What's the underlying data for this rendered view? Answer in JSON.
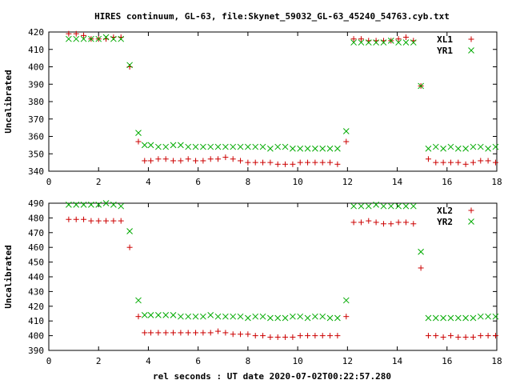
{
  "chart_data": [
    {
      "type": "scatter",
      "title": "HIRES continuum, GL-63, file:Skynet_59032_GL-63_45240_54763.cyb.txt",
      "xlabel": "",
      "ylabel": "Uncalibrated",
      "xlim": [
        0,
        18
      ],
      "ylim": [
        340,
        420
      ],
      "xticks": [
        0,
        2,
        4,
        6,
        8,
        10,
        12,
        14,
        16,
        18
      ],
      "yticks": [
        340,
        350,
        360,
        370,
        380,
        390,
        400,
        410,
        420
      ],
      "grid": false,
      "legend": "top-right",
      "series": [
        {
          "name": "XL1",
          "color": "#cc0000",
          "marker": "plus",
          "x": [
            0.8,
            1.1,
            1.4,
            1.7,
            2.0,
            2.3,
            2.6,
            2.9,
            3.25,
            3.6,
            3.85,
            4.1,
            4.4,
            4.7,
            5.0,
            5.3,
            5.6,
            5.9,
            6.2,
            6.5,
            6.8,
            7.1,
            7.4,
            7.7,
            8.0,
            8.3,
            8.6,
            8.9,
            9.2,
            9.5,
            9.8,
            10.1,
            10.4,
            10.7,
            11.0,
            11.3,
            11.6,
            11.95,
            12.25,
            12.55,
            12.85,
            13.15,
            13.45,
            13.75,
            14.05,
            14.35,
            14.65,
            14.95,
            15.25,
            15.55,
            15.85,
            16.15,
            16.45,
            16.75,
            17.05,
            17.35,
            17.65,
            17.95
          ],
          "y": [
            419,
            419,
            418,
            416,
            416,
            416,
            417,
            417,
            400,
            357,
            346,
            346,
            347,
            347,
            346,
            346,
            347,
            346,
            346,
            347,
            347,
            348,
            347,
            346,
            345,
            345,
            345,
            345,
            344,
            344,
            344,
            345,
            345,
            345,
            345,
            345,
            344,
            357,
            416,
            416,
            415,
            415,
            415,
            415,
            416,
            417,
            415,
            389,
            347,
            345,
            345,
            345,
            345,
            344,
            345,
            346,
            346,
            345
          ]
        },
        {
          "name": "YR1",
          "color": "#00aa00",
          "marker": "cross",
          "x": [
            0.8,
            1.1,
            1.4,
            1.7,
            2.0,
            2.3,
            2.6,
            2.9,
            3.25,
            3.6,
            3.85,
            4.1,
            4.4,
            4.7,
            5.0,
            5.3,
            5.6,
            5.9,
            6.2,
            6.5,
            6.8,
            7.1,
            7.4,
            7.7,
            8.0,
            8.3,
            8.6,
            8.9,
            9.2,
            9.5,
            9.8,
            10.1,
            10.4,
            10.7,
            11.0,
            11.3,
            11.6,
            11.95,
            12.25,
            12.55,
            12.85,
            13.15,
            13.45,
            13.75,
            14.05,
            14.35,
            14.65,
            14.95,
            15.25,
            15.55,
            15.85,
            16.15,
            16.45,
            16.75,
            17.05,
            17.35,
            17.65,
            17.95
          ],
          "y": [
            416,
            416,
            416,
            416,
            416,
            417,
            416,
            416,
            401,
            362,
            355,
            355,
            354,
            354,
            355,
            355,
            354,
            354,
            354,
            354,
            354,
            354,
            354,
            354,
            354,
            354,
            354,
            353,
            354,
            354,
            353,
            353,
            353,
            353,
            353,
            353,
            353,
            363,
            414,
            414,
            414,
            414,
            414,
            415,
            414,
            414,
            414,
            389,
            353,
            354,
            353,
            354,
            353,
            353,
            354,
            354,
            353,
            354
          ]
        }
      ]
    },
    {
      "type": "scatter",
      "title": "",
      "xlabel": "rel seconds : UT date 2020-07-02T00:22:57.280",
      "ylabel": "Uncalibrated",
      "xlim": [
        0,
        18
      ],
      "ylim": [
        390,
        490
      ],
      "xticks": [
        0,
        2,
        4,
        6,
        8,
        10,
        12,
        14,
        16,
        18
      ],
      "yticks": [
        390,
        400,
        410,
        420,
        430,
        440,
        450,
        460,
        470,
        480,
        490
      ],
      "grid": false,
      "legend": "top-right",
      "series": [
        {
          "name": "XL2",
          "color": "#cc0000",
          "marker": "plus",
          "x": [
            0.8,
            1.1,
            1.4,
            1.7,
            2.0,
            2.3,
            2.6,
            2.9,
            3.25,
            3.6,
            3.85,
            4.1,
            4.4,
            4.7,
            5.0,
            5.3,
            5.6,
            5.9,
            6.2,
            6.5,
            6.8,
            7.1,
            7.4,
            7.7,
            8.0,
            8.3,
            8.6,
            8.9,
            9.2,
            9.5,
            9.8,
            10.1,
            10.4,
            10.7,
            11.0,
            11.3,
            11.6,
            11.95,
            12.25,
            12.55,
            12.85,
            13.15,
            13.45,
            13.75,
            14.05,
            14.35,
            14.65,
            14.95,
            15.25,
            15.55,
            15.85,
            16.15,
            16.45,
            16.75,
            17.05,
            17.35,
            17.65,
            17.95
          ],
          "y": [
            479,
            479,
            479,
            478,
            478,
            478,
            478,
            478,
            460,
            413,
            402,
            402,
            402,
            402,
            402,
            402,
            402,
            402,
            402,
            402,
            403,
            402,
            401,
            401,
            401,
            400,
            400,
            399,
            399,
            399,
            399,
            400,
            400,
            400,
            400,
            400,
            400,
            413,
            477,
            477,
            478,
            477,
            476,
            476,
            477,
            477,
            476,
            446,
            400,
            400,
            399,
            400,
            399,
            399,
            399,
            400,
            400,
            400
          ]
        },
        {
          "name": "YR2",
          "color": "#00aa00",
          "marker": "cross",
          "x": [
            0.8,
            1.1,
            1.4,
            1.7,
            2.0,
            2.3,
            2.6,
            2.9,
            3.25,
            3.6,
            3.85,
            4.1,
            4.4,
            4.7,
            5.0,
            5.3,
            5.6,
            5.9,
            6.2,
            6.5,
            6.8,
            7.1,
            7.4,
            7.7,
            8.0,
            8.3,
            8.6,
            8.9,
            9.2,
            9.5,
            9.8,
            10.1,
            10.4,
            10.7,
            11.0,
            11.3,
            11.6,
            11.95,
            12.25,
            12.55,
            12.85,
            13.15,
            13.45,
            13.75,
            14.05,
            14.35,
            14.65,
            14.95,
            15.25,
            15.55,
            15.85,
            16.15,
            16.45,
            16.75,
            17.05,
            17.35,
            17.65,
            17.95
          ],
          "y": [
            489,
            489,
            489,
            489,
            489,
            490,
            489,
            488,
            471,
            424,
            414,
            414,
            414,
            414,
            414,
            413,
            413,
            413,
            413,
            414,
            413,
            413,
            413,
            413,
            412,
            413,
            413,
            412,
            412,
            412,
            413,
            413,
            412,
            413,
            413,
            412,
            412,
            424,
            488,
            488,
            488,
            489,
            488,
            488,
            488,
            488,
            488,
            457,
            412,
            412,
            412,
            412,
            412,
            412,
            412,
            413,
            413,
            413
          ]
        }
      ]
    }
  ]
}
